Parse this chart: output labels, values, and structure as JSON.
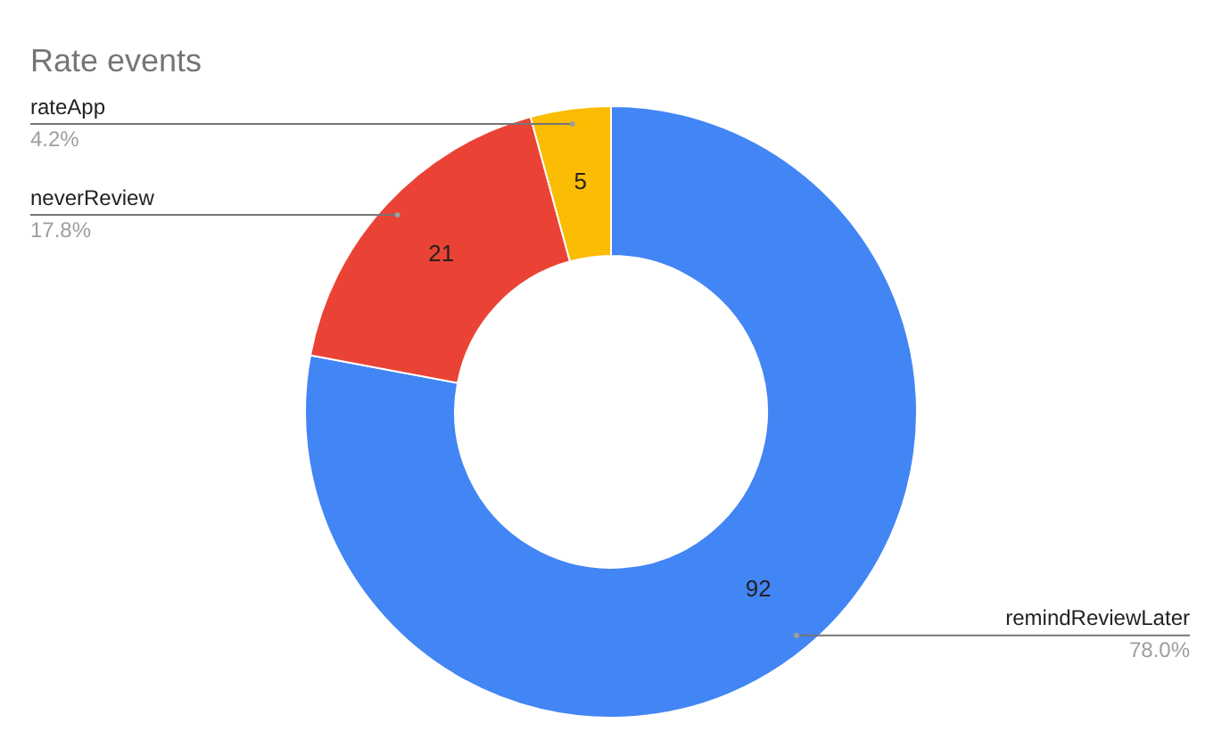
{
  "chart_data": {
    "type": "donut",
    "title": "Rate events",
    "categories": [
      "remindReviewLater",
      "neverReview",
      "rateApp"
    ],
    "values": [
      92,
      21,
      5
    ],
    "colors": [
      "#4285f4",
      "#ea4335",
      "#fbbc04"
    ],
    "annotations": [
      "78.0%",
      "17.8%",
      "4.2%"
    ],
    "data_labels": true,
    "legend": false
  }
}
